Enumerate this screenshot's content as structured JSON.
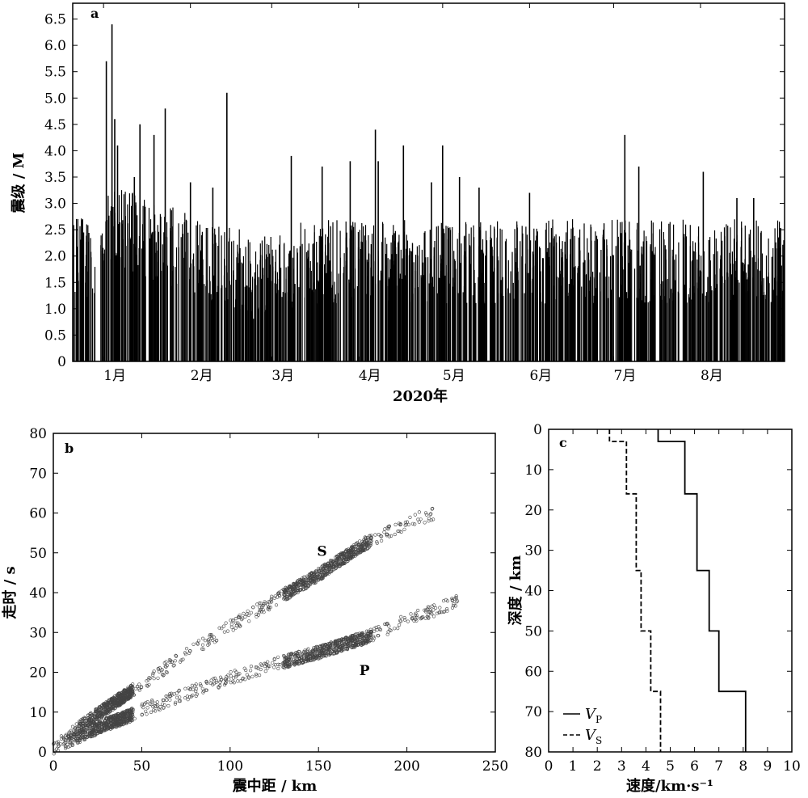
{
  "chart_data": [
    {
      "id": "a",
      "type": "bar",
      "panel_label": "a",
      "xlabel": "2020年",
      "ylabel": "震级 / M",
      "x_tick_labels": [
        "1月",
        "2月",
        "3月",
        "4月",
        "5月",
        "6月",
        "7月",
        "8月"
      ],
      "y_tick_labels": [
        "0",
        "0.5",
        "1.0",
        "1.5",
        "2.0",
        "2.5",
        "3.0",
        "3.5",
        "4.0",
        "4.5",
        "5.0",
        "5.5",
        "6.0",
        "6.5"
      ],
      "ylim": [
        0,
        6.8
      ],
      "x_domain": [
        "2019-12-21",
        "2020-08-31"
      ],
      "peak_events": [
        {
          "date": "2020-01-02",
          "magnitude": 5.7
        },
        {
          "date": "2020-01-04",
          "magnitude": 6.4
        },
        {
          "date": "2020-01-05",
          "magnitude": 4.6
        },
        {
          "date": "2020-01-06",
          "magnitude": 4.1
        },
        {
          "date": "2020-01-12",
          "magnitude": 3.5
        },
        {
          "date": "2020-01-14",
          "magnitude": 4.5
        },
        {
          "date": "2020-01-19",
          "magnitude": 4.3
        },
        {
          "date": "2020-01-23",
          "magnitude": 4.8
        },
        {
          "date": "2020-02-01",
          "magnitude": 3.4
        },
        {
          "date": "2020-02-09",
          "magnitude": 3.3
        },
        {
          "date": "2020-02-14",
          "magnitude": 5.1
        },
        {
          "date": "2020-03-08",
          "magnitude": 3.9
        },
        {
          "date": "2020-03-19",
          "magnitude": 3.7
        },
        {
          "date": "2020-03-29",
          "magnitude": 3.8
        },
        {
          "date": "2020-04-07",
          "magnitude": 4.4
        },
        {
          "date": "2020-04-08",
          "magnitude": 3.8
        },
        {
          "date": "2020-04-17",
          "magnitude": 4.1
        },
        {
          "date": "2020-04-27",
          "magnitude": 3.4
        },
        {
          "date": "2020-05-01",
          "magnitude": 4.1
        },
        {
          "date": "2020-05-07",
          "magnitude": 3.5
        },
        {
          "date": "2020-05-14",
          "magnitude": 3.3
        },
        {
          "date": "2020-06-01",
          "magnitude": 3.2
        },
        {
          "date": "2020-07-05",
          "magnitude": 4.3
        },
        {
          "date": "2020-07-10",
          "magnitude": 3.7
        },
        {
          "date": "2020-08-02",
          "magnitude": 3.6
        },
        {
          "date": "2020-08-14",
          "magnitude": 3.1
        },
        {
          "date": "2020-08-20",
          "magnitude": 3.1
        }
      ]
    },
    {
      "id": "b",
      "type": "scatter",
      "panel_label": "b",
      "xlabel": "震中距 / km",
      "ylabel": "走时 / s",
      "xlim": [
        0,
        250
      ],
      "ylim": [
        0,
        80
      ],
      "x_tick_labels": [
        "0",
        "50",
        "100",
        "150",
        "200",
        "250"
      ],
      "y_tick_labels": [
        "0",
        "10",
        "20",
        "30",
        "40",
        "50",
        "60",
        "70",
        "80"
      ],
      "annotations": [
        {
          "text": "S",
          "x": 152,
          "y": 50.5
        },
        {
          "text": "P",
          "x": 176,
          "y": 20.5
        }
      ],
      "series": [
        {
          "name": "S",
          "x": [
            0,
            10,
            20,
            30,
            40,
            50,
            75,
            100,
            125,
            150,
            175,
            200,
            215
          ],
          "y": [
            1.5,
            4.5,
            8,
            11,
            14,
            17,
            24.5,
            31.5,
            38,
            44.5,
            52,
            57.5,
            60
          ]
        },
        {
          "name": "P",
          "x": [
            0,
            10,
            20,
            30,
            40,
            50,
            75,
            100,
            125,
            150,
            175,
            200,
            230
          ],
          "y": [
            1,
            3,
            5,
            7,
            8.5,
            10.5,
            14.5,
            18.5,
            22,
            25,
            28.5,
            33,
            38
          ]
        }
      ]
    },
    {
      "id": "c",
      "type": "line",
      "panel_label": "c",
      "xlabel": "速度/km·s⁻¹",
      "ylabel": "深度 / km",
      "xlim": [
        0,
        10
      ],
      "ylim": [
        80,
        0
      ],
      "x_tick_labels": [
        "0",
        "1",
        "2",
        "3",
        "4",
        "5",
        "6",
        "7",
        "8",
        "9",
        "10"
      ],
      "y_tick_labels": [
        "0",
        "10",
        "20",
        "30",
        "40",
        "50",
        "60",
        "70",
        "80"
      ],
      "legend": {
        "placement": "bottom-left",
        "entries": [
          {
            "main": "V",
            "sub": "P",
            "style": "solid"
          },
          {
            "main": "V",
            "sub": "S",
            "style": "dashed"
          }
        ]
      },
      "series": [
        {
          "name": "VP",
          "depth": [
            0,
            3,
            3,
            16,
            16,
            35,
            35,
            50,
            50,
            65,
            65,
            80
          ],
          "velocity": [
            4.5,
            4.5,
            5.6,
            5.6,
            6.1,
            6.1,
            6.6,
            6.6,
            7.0,
            7.0,
            8.1,
            8.1
          ]
        },
        {
          "name": "VS",
          "depth": [
            0,
            3,
            3,
            16,
            16,
            35,
            35,
            50,
            50,
            65,
            65,
            80
          ],
          "velocity": [
            2.5,
            2.5,
            3.2,
            3.2,
            3.6,
            3.6,
            3.8,
            3.8,
            4.2,
            4.2,
            4.6,
            4.6
          ]
        }
      ]
    }
  ]
}
